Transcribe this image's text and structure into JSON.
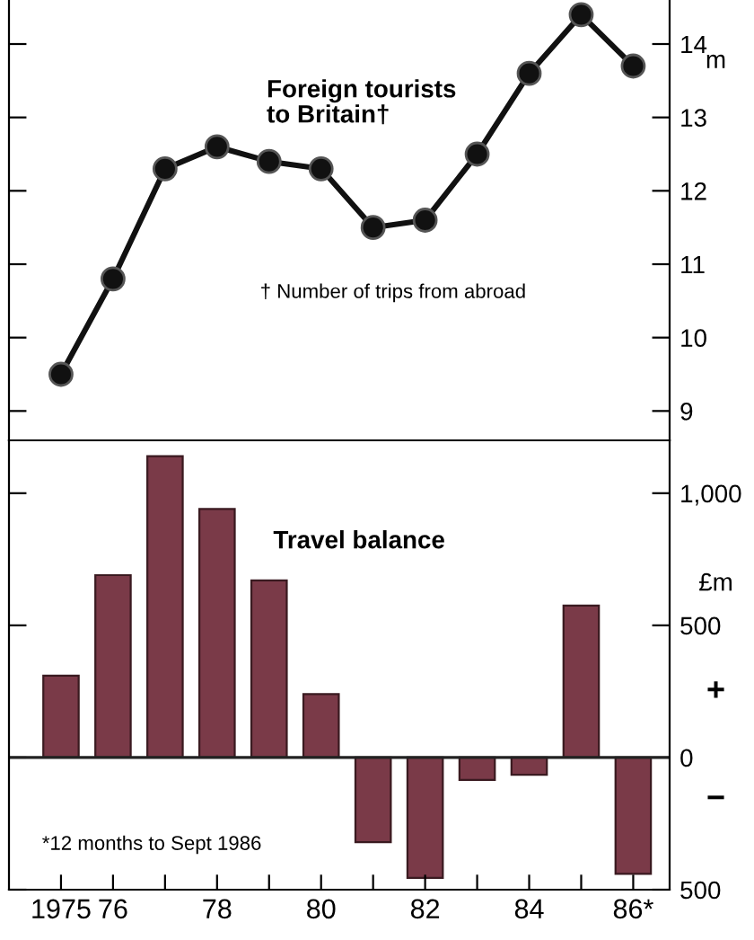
{
  "chart_data": [
    {
      "type": "line",
      "title": "Foreign tourists\nto Britain†",
      "ylabel": "m",
      "categories": [
        null,
        null,
        null,
        null,
        null,
        null,
        null,
        null,
        null,
        null,
        null,
        null
      ],
      "series": [
        {
          "color": "#111111",
          "values": [
            9.5,
            10.8,
            12.3,
            12.6,
            12.4,
            12.3,
            11.5,
            11.6,
            12.5,
            13.6,
            14.4,
            13.7
          ]
        }
      ],
      "annotations": [
        "† Number of trips from abroad"
      ],
      "ylim": [
        8.6,
        14.6
      ],
      "yticks": [
        9,
        10,
        11,
        12,
        13,
        14
      ],
      "tick_labels": "y",
      "marker": "circle",
      "line_style": "solid",
      "grid": false,
      "legend": false
    },
    {
      "type": "bar",
      "title": "Travel balance",
      "ylabel": "£m",
      "categories": [
        "1975",
        "76",
        null,
        "78",
        null,
        "80",
        null,
        "82",
        null,
        "84",
        null,
        "86*"
      ],
      "series": [
        {
          "color": "#7a3a48",
          "values": [
            310,
            690,
            1140,
            940,
            670,
            240,
            -320,
            -455,
            -85,
            -65,
            575,
            -440
          ]
        }
      ],
      "annotations": [
        "+",
        "−",
        "*12 months to Sept 1986"
      ],
      "ylim": [
        -500,
        1200
      ],
      "yticks": [
        {
          "value": -500,
          "label": "500"
        },
        0,
        500,
        {
          "value": 1000,
          "label": "1,000"
        }
      ],
      "ref_lines": [
        {
          "axis": "y",
          "value": 0,
          "color": "#222222"
        }
      ],
      "grid": false,
      "legend": false
    }
  ]
}
